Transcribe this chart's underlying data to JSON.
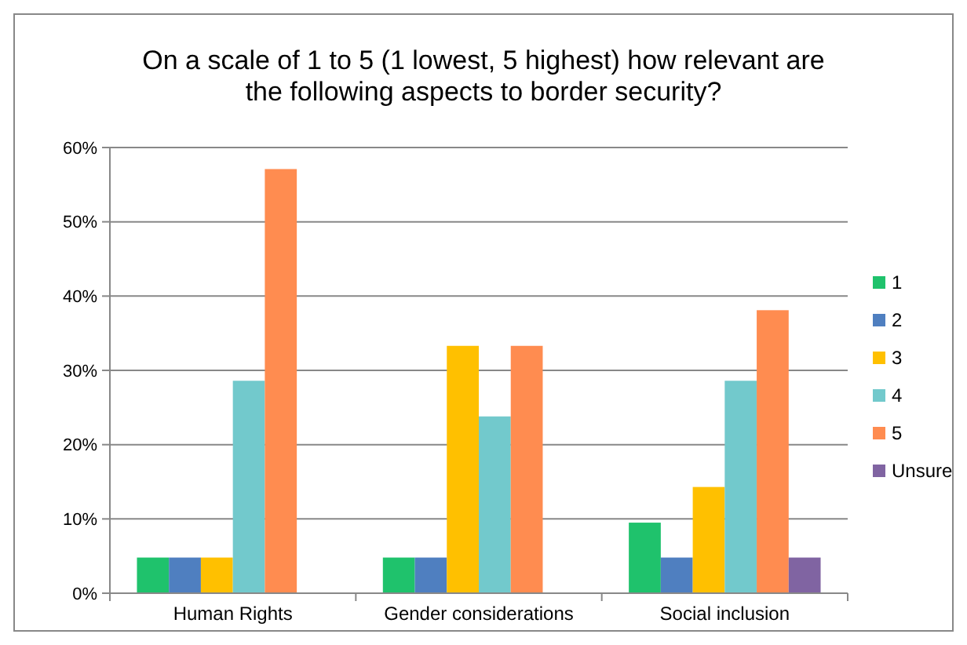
{
  "chart_data": {
    "type": "bar",
    "title": "On a scale of 1 to 5 (1 lowest, 5 highest) how relevant are the following aspects to border security?",
    "categories": [
      "Human Rights",
      "Gender considerations",
      "Social inclusion"
    ],
    "series": [
      {
        "name": "1",
        "color": "#1fc26c",
        "values": [
          4.8,
          4.8,
          9.5
        ]
      },
      {
        "name": "2",
        "color": "#4f7fc0",
        "values": [
          4.8,
          4.8,
          4.8
        ]
      },
      {
        "name": "3",
        "color": "#ffc000",
        "values": [
          4.8,
          33.3,
          14.3
        ]
      },
      {
        "name": "4",
        "color": "#72c9cc",
        "values": [
          28.6,
          23.8,
          28.6
        ]
      },
      {
        "name": "5",
        "color": "#ff8c50",
        "values": [
          57.1,
          33.3,
          38.1
        ]
      },
      {
        "name": "Unsure",
        "color": "#8064a2",
        "values": [
          0,
          0,
          4.8
        ]
      }
    ],
    "ylim": [
      0,
      60
    ],
    "yticks": [
      {
        "value": 0,
        "label": "0%"
      },
      {
        "value": 10,
        "label": "10%"
      },
      {
        "value": 20,
        "label": "20%"
      },
      {
        "value": 30,
        "label": "30%"
      },
      {
        "value": 40,
        "label": "40%"
      },
      {
        "value": 50,
        "label": "50%"
      },
      {
        "value": 60,
        "label": "60%"
      }
    ],
    "grid": "y",
    "legend": "right"
  }
}
